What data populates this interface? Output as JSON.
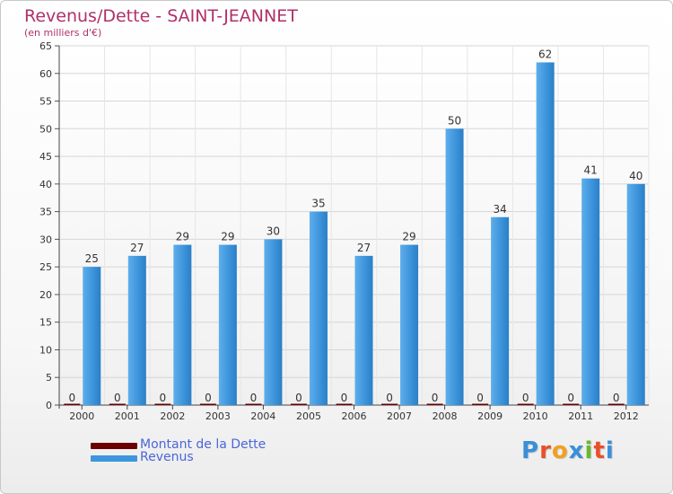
{
  "chart_data": {
    "type": "bar",
    "title": "Revenus/Dette - SAINT-JEANNET",
    "subtitle": "(en milliers d'€)",
    "categories": [
      "2000",
      "2001",
      "2002",
      "2003",
      "2004",
      "2005",
      "2006",
      "2007",
      "2008",
      "2009",
      "2010",
      "2011",
      "2012"
    ],
    "series": [
      {
        "name": "Montant de la Dette",
        "color": "#6b0000",
        "values": [
          0,
          0,
          0,
          0,
          0,
          0,
          0,
          0,
          0,
          0,
          0,
          0,
          0
        ]
      },
      {
        "name": "Revenus",
        "color": "#3d95dc",
        "values": [
          25,
          27,
          29,
          29,
          30,
          35,
          27,
          29,
          50,
          34,
          62,
          41,
          40
        ]
      }
    ],
    "ylim": [
      0,
      65
    ],
    "yticks": [
      0,
      5,
      10,
      15,
      20,
      25,
      30,
      35,
      40,
      45,
      50,
      55,
      60,
      65
    ],
    "grid": true,
    "legend": "bottom-left"
  },
  "logo": {
    "text": "Proxiti",
    "letter_colors": [
      "#3a8fd8",
      "#e8502a",
      "#f0a020",
      "#3a8fd8",
      "#68b830",
      "#e8502a",
      "#3a8fd8"
    ]
  }
}
